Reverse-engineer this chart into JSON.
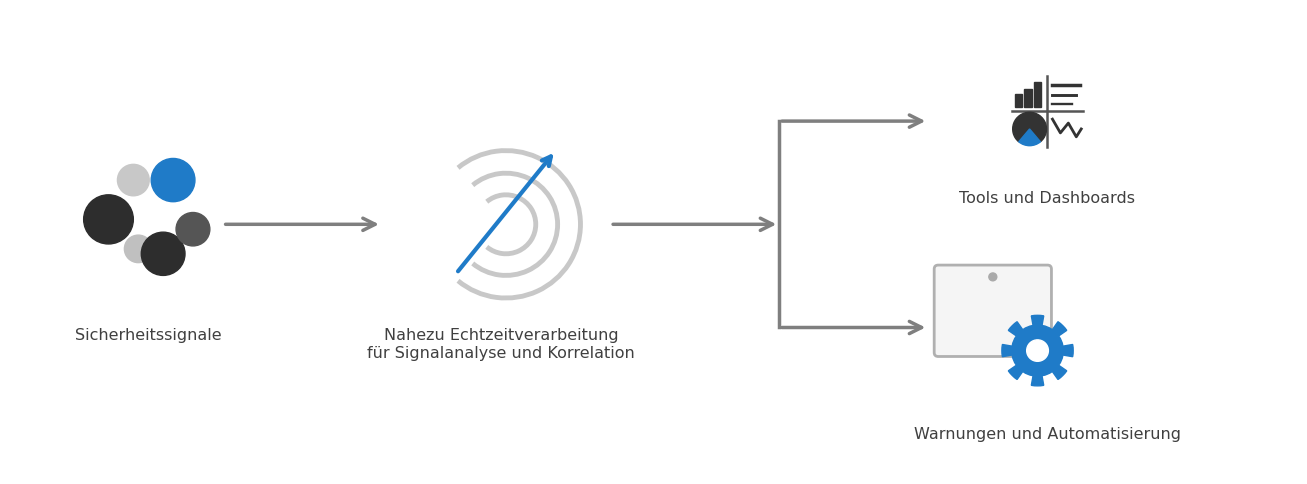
{
  "background_color": "#ffffff",
  "fig_width": 13.07,
  "fig_height": 4.85,
  "label_sicherheit": "Sicherheitssignale",
  "label_nahezu": "Nahezu Echtzeitverarbeitung\nfür Signalanalyse und Korrelation",
  "label_tools": "Tools und Dashboards",
  "label_warnungen": "Warnungen und Automatisierung",
  "arrow_color": "#7f7f7f",
  "target_color": "#c8c8c8",
  "blue_color": "#1f7bc8",
  "dark_color": "#333333",
  "gray_mid": "#888888",
  "text_color": "#404040",
  "font_size": 11.5
}
